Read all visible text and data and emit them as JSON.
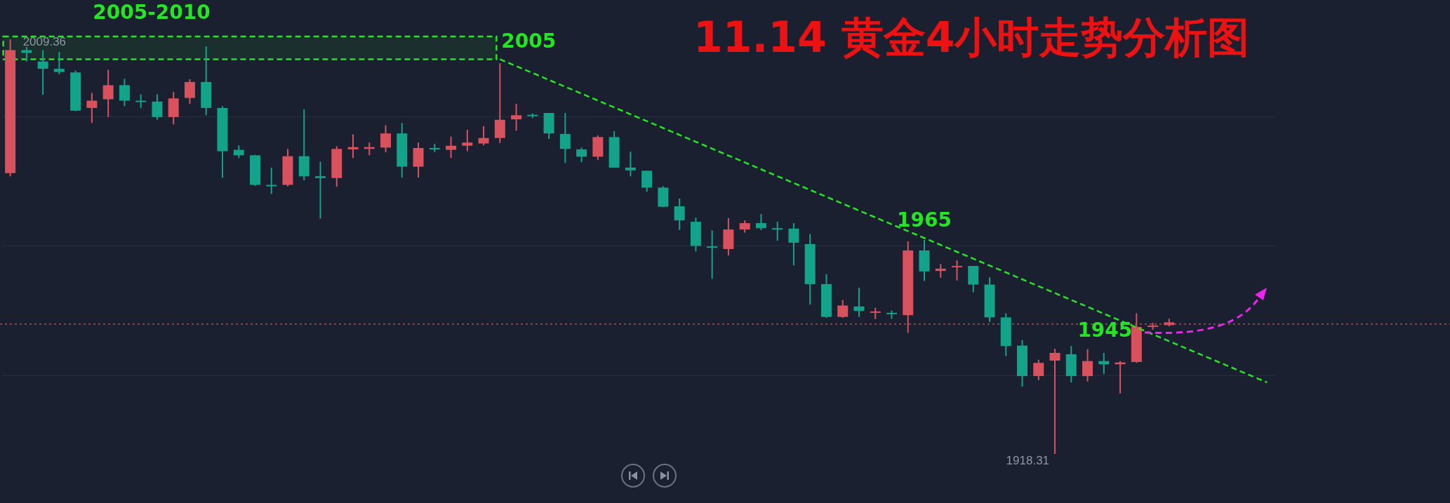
{
  "chart_data": {
    "type": "candlestick",
    "title": "11.14 黄金4小时走势分析图",
    "categories": [
      null,
      null,
      null,
      null,
      null,
      null,
      null,
      null,
      null,
      null,
      null,
      null,
      null,
      null,
      null,
      null,
      null,
      null,
      null,
      null,
      null,
      null,
      null,
      null,
      null,
      null,
      null,
      null,
      null,
      null,
      null,
      null,
      null,
      null,
      null,
      null,
      null,
      null,
      null,
      null,
      null,
      null,
      null,
      null,
      null,
      null,
      null,
      null,
      null,
      null,
      null,
      null,
      null,
      null,
      null,
      null,
      null,
      null,
      null,
      null,
      null,
      null,
      null,
      null,
      null,
      null,
      null,
      null,
      null,
      null,
      null,
      null,
      null,
      null,
      null,
      null,
      null,
      null
    ],
    "ohlc": [
      [
        1980.0,
        2009.36,
        1979.3,
        2007.0
      ],
      [
        2007.0,
        2007.7,
        2004.5,
        2006.4
      ],
      [
        2004.5,
        2007.0,
        1997.2,
        2002.9
      ],
      [
        2002.9,
        2006.6,
        2001.7,
        2002.2
      ],
      [
        2002.1,
        2002.5,
        1993.6,
        1993.7
      ],
      [
        1994.3,
        1997.6,
        1991.0,
        1995.9
      ],
      [
        1996.2,
        2002.7,
        1992.3,
        1999.3
      ],
      [
        1999.3,
        2000.7,
        1994.7,
        1995.9
      ],
      [
        1995.9,
        1997.3,
        1994.3,
        1995.7
      ],
      [
        1995.7,
        1997.3,
        1991.7,
        1992.3
      ],
      [
        1992.3,
        1997.8,
        1990.7,
        1996.4
      ],
      [
        1996.5,
        2000.6,
        1995.2,
        2000.0
      ],
      [
        2000.0,
        2007.8,
        1992.7,
        1994.3
      ],
      [
        1994.3,
        1994.7,
        1979.0,
        1984.8
      ],
      [
        1985.1,
        1986.1,
        1983.3,
        1983.9
      ],
      [
        1983.9,
        1984.0,
        1977.2,
        1977.4
      ],
      [
        1977.4,
        1981.2,
        1975.4,
        1977.1
      ],
      [
        1977.4,
        1985.3,
        1977.1,
        1983.7
      ],
      [
        1983.7,
        1994.0,
        1978.4,
        1979.3
      ],
      [
        1979.3,
        1982.5,
        1970.0,
        1978.9
      ],
      [
        1978.9,
        1985.9,
        1977.0,
        1985.3
      ],
      [
        1985.2,
        1988.5,
        1983.3,
        1985.7
      ],
      [
        1985.3,
        1986.7,
        1983.9,
        1985.7
      ],
      [
        1985.6,
        1990.5,
        1984.6,
        1988.7
      ],
      [
        1988.7,
        1991.0,
        1979.0,
        1981.4
      ],
      [
        1981.4,
        1986.7,
        1979.0,
        1985.5
      ],
      [
        1985.5,
        1986.4,
        1984.6,
        1985.2
      ],
      [
        1985.1,
        1988.0,
        1983.3,
        1986.0
      ],
      [
        1986.0,
        1989.5,
        1984.8,
        1986.7
      ],
      [
        1986.5,
        1990.3,
        1986.1,
        1987.7
      ],
      [
        1987.7,
        2004.1,
        1986.6,
        1991.7
      ],
      [
        1991.8,
        1995.2,
        1989.3,
        1992.7
      ],
      [
        1992.8,
        1993.1,
        1992.1,
        1992.6
      ],
      [
        1993.2,
        1993.2,
        1987.5,
        1988.7
      ],
      [
        1988.6,
        1993.2,
        1982.2,
        1985.3
      ],
      [
        1985.2,
        1985.6,
        1982.4,
        1983.6
      ],
      [
        1983.6,
        1988.3,
        1982.9,
        1987.9
      ],
      [
        1987.9,
        1989.2,
        1981.2,
        1981.2
      ],
      [
        1981.2,
        1984.7,
        1979.3,
        1980.6
      ],
      [
        1980.5,
        1980.5,
        1975.9,
        1976.8
      ],
      [
        1976.8,
        1977.1,
        1972.5,
        1972.6
      ],
      [
        1972.7,
        1974.4,
        1967.5,
        1969.6
      ],
      [
        1969.3,
        1970.2,
        1962.8,
        1964.0
      ],
      [
        1963.9,
        1967.4,
        1956.8,
        1963.6
      ],
      [
        1963.3,
        1970.1,
        1961.9,
        1967.6
      ],
      [
        1967.6,
        1969.6,
        1966.9,
        1969.0
      ],
      [
        1969.0,
        1971.0,
        1967.5,
        1967.9
      ],
      [
        1967.9,
        1969.3,
        1965.1,
        1967.6
      ],
      [
        1967.8,
        1969.0,
        1959.7,
        1964.7
      ],
      [
        1964.4,
        1966.6,
        1951.1,
        1955.6
      ],
      [
        1955.6,
        1957.8,
        1948.2,
        1948.4
      ],
      [
        1948.4,
        1952.1,
        1948.2,
        1950.9
      ],
      [
        1950.7,
        1954.8,
        1948.4,
        1949.7
      ],
      [
        1949.3,
        1950.4,
        1947.9,
        1949.6
      ],
      [
        1949.3,
        1949.8,
        1948.0,
        1949.0
      ],
      [
        1948.8,
        1965.0,
        1944.9,
        1963.0
      ],
      [
        1963.0,
        1965.3,
        1956.3,
        1958.4
      ],
      [
        1958.5,
        1960.0,
        1957.0,
        1959.0
      ],
      [
        1959.3,
        1960.8,
        1956.4,
        1959.6
      ],
      [
        1959.6,
        1959.6,
        1953.8,
        1955.5
      ],
      [
        1955.5,
        1957.1,
        1947.3,
        1948.3
      ],
      [
        1948.3,
        1949.2,
        1939.8,
        1942.0
      ],
      [
        1942.1,
        1943.3,
        1933.1,
        1935.4
      ],
      [
        1935.4,
        1939.0,
        1934.5,
        1938.3
      ],
      [
        1938.8,
        1941.4,
        1918.31,
        1940.5
      ],
      [
        1940.2,
        1942.0,
        1934.0,
        1935.4
      ],
      [
        1935.4,
        1941.3,
        1934.2,
        1938.7
      ],
      [
        1938.7,
        1940.5,
        1935.9,
        1938.0
      ],
      [
        1938.0,
        1938.7,
        1931.6,
        1938.4
      ],
      [
        1938.5,
        1949.2,
        1938.3,
        1946.2
      ],
      [
        1946.3,
        1947.1,
        1945.6,
        1946.5
      ],
      [
        1946.6,
        1948.0,
        1946.3,
        1947.2
      ],
      null,
      null,
      null,
      null,
      null,
      null
    ],
    "colors": [
      "#d9515c",
      "#12a38a",
      "#12a38a",
      "#12a38a",
      "#12a38a",
      "#d9515c",
      "#d9515c",
      "#12a38a",
      "#12a38a",
      "#12a38a",
      "#d9515c",
      "#d9515c",
      "#12a38a",
      "#12a38a",
      "#12a38a",
      "#12a38a",
      "#12a38a",
      "#d9515c",
      "#12a38a",
      "#12a38a",
      "#d9515c",
      "#d9515c",
      "#d9515c",
      "#d9515c",
      "#12a38a",
      "#d9515c",
      "#12a38a",
      "#d9515c",
      "#d9515c",
      "#d9515c",
      "#d9515c",
      "#d9515c",
      "#12a38a",
      "#12a38a",
      "#12a38a",
      "#12a38a",
      "#d9515c",
      "#12a38a",
      "#12a38a",
      "#12a38a",
      "#12a38a",
      "#12a38a",
      "#12a38a",
      "#12a38a",
      "#d9515c",
      "#d9515c",
      "#12a38a",
      "#12a38a",
      "#12a38a",
      "#12a38a",
      "#12a38a",
      "#d9515c",
      "#12a38a",
      "#d9515c",
      "#12a38a",
      "#d9515c",
      "#12a38a",
      "#d9515c",
      "#d9515c",
      "#12a38a",
      "#12a38a",
      "#12a38a",
      "#12a38a",
      "#d9515c",
      "#d9515c",
      "#12a38a",
      "#d9515c",
      "#12a38a",
      "#d9515c",
      "#d9515c",
      "#d9515c",
      "#d9515c",
      null,
      null,
      null,
      null,
      null,
      null
    ],
    "series": [
      {
        "type": "line",
        "color": "#22e622",
        "line_style": "dashed",
        "values": [
          null,
          null,
          null,
          null,
          null,
          null,
          null,
          null,
          null,
          null,
          null,
          null,
          null,
          null,
          null,
          null,
          null,
          null,
          null,
          null,
          null,
          null,
          null,
          null,
          null,
          null,
          null,
          null,
          null,
          null,
          2005,
          null,
          null,
          null,
          null,
          null,
          null,
          null,
          null,
          null,
          null,
          null,
          null,
          null,
          null,
          null,
          null,
          null,
          null,
          null,
          null,
          null,
          null,
          null,
          null,
          null,
          null,
          null,
          null,
          null,
          null,
          null,
          null,
          null,
          null,
          null,
          null,
          null,
          null,
          null,
          null,
          null,
          null,
          null,
          null,
          null,
          null,
          1934
        ]
      }
    ],
    "bands": [
      {
        "axis": "y",
        "from": 2005,
        "to": 2010,
        "label": "2005-2010",
        "color": "#22e622"
      }
    ],
    "ref_lines": [
      {
        "axis": "y",
        "value": 1946.8,
        "color": "#a05555",
        "line_style": "dotted"
      }
    ],
    "annotations": [
      "2005",
      "1965",
      "1945",
      "2009.36",
      "1918.31"
    ],
    "yticks": [
      {
        "value": 1992.3,
        "label": null
      },
      {
        "value": 1964.0,
        "label": null
      },
      {
        "value": 1935.5,
        "label": null
      }
    ],
    "grid": "y",
    "legend": false
  }
}
